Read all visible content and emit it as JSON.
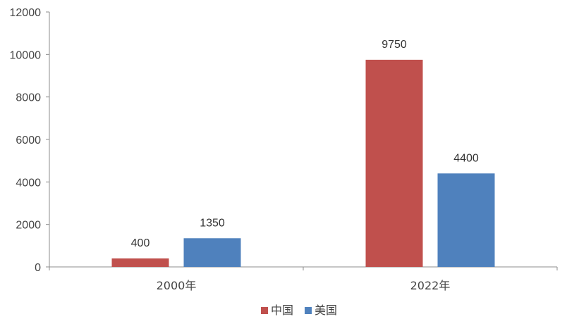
{
  "chart_data": {
    "type": "bar",
    "categories": [
      "2000年",
      "2022年"
    ],
    "series": [
      {
        "name": "中国",
        "values": [
          400,
          9750
        ],
        "color": "#C0504D"
      },
      {
        "name": "美国",
        "values": [
          1350,
          4400
        ],
        "color": "#4F81BD"
      }
    ],
    "ylim": [
      0,
      12000
    ],
    "yticks": [
      0,
      2000,
      4000,
      6000,
      8000,
      10000,
      12000
    ],
    "grid": false,
    "legend_position": "bottom",
    "data_labels": true
  }
}
